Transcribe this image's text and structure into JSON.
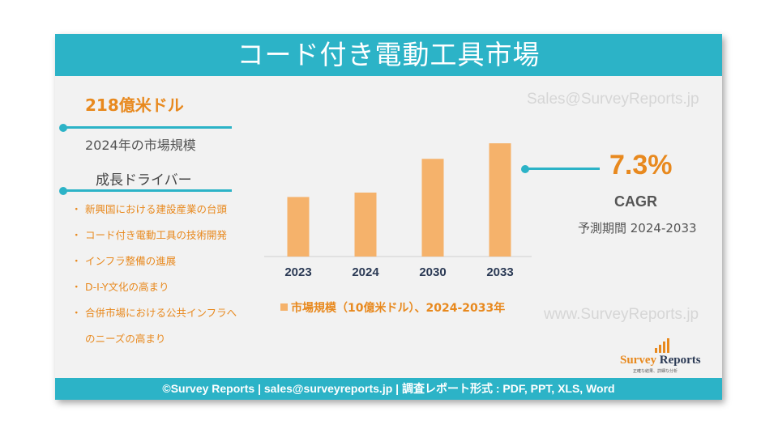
{
  "header": {
    "title": "コード付き電動工具市場"
  },
  "market": {
    "value": "218億米ドル",
    "label": "2024年の市場規模"
  },
  "drivers": {
    "heading": "成長ドライバー",
    "bullet": "・",
    "items": [
      "新興国における建設産業の台頭",
      "コード付き電動工具の技術開発",
      "インフラ整備の進展",
      "D-I-Y文化の高まり",
      "合併市場における公共インフラへ",
      "のニーズの高まり"
    ]
  },
  "watermarks": {
    "email": "Sales@SurveyReports.jp",
    "site": "www.SurveyReports.jp"
  },
  "cagr": {
    "value": "7.3%",
    "label": "CAGR",
    "forecast": "予測期間 2024-2033"
  },
  "chart_data": {
    "type": "bar",
    "categories": [
      "2023",
      "2024",
      "2030",
      "2033"
    ],
    "series": [
      {
        "name": "市場規模（10億米ドル）、2024-2033年",
        "values": [
          20.3,
          21.8,
          33.3,
          38.6
        ]
      }
    ],
    "ylim": [
      0,
      40
    ],
    "legend": "bottom",
    "grid": false,
    "colors": {
      "bar": "#f5b26b",
      "axis": "#d0d0d0",
      "tick_label": "#2b3a55"
    }
  },
  "logo": {
    "name_part1": "Survey",
    "name_part2": " Reports",
    "tagline": "正確な結果、詳細な分析"
  },
  "footer": {
    "text": "©Survey Reports | sales@surveyreports.jp |  調査レポート形式 : PDF, PPT, XLS, Word"
  },
  "colors": {
    "accent": "#2cb3c7",
    "orange": "#e8891e",
    "panel": "#f2f2f2"
  }
}
